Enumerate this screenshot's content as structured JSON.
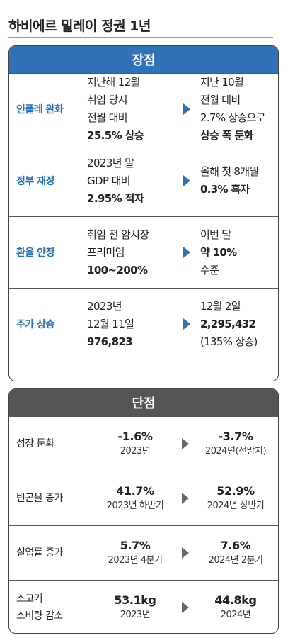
{
  "title": "하비에르 밀레이 정권 1년",
  "colors": {
    "pros_accent": "#2f72b8",
    "cons_accent": "#555555"
  },
  "pros": {
    "header": "장점",
    "rows": [
      {
        "label": "인플레 완화",
        "before": [
          "지난해 12월",
          "취임 당시",
          "전월 대비",
          "25.5% 상승"
        ],
        "after": [
          "지난 10월",
          "전월 대비",
          "2.7% 상승으로",
          "상승 폭 둔화"
        ]
      },
      {
        "label": "정부 재정",
        "before": [
          "2023년 말",
          "GDP 대비",
          "2.95% 적자"
        ],
        "after": [
          "올해 첫 8개월",
          "0.3% 흑자"
        ]
      },
      {
        "label": "환율 안정",
        "before": [
          "취임 전 암시장",
          "프리미엄",
          "100~200%"
        ],
        "after": [
          "이번 달",
          "약 10%",
          "수준"
        ]
      },
      {
        "label": "주가 상승",
        "before": [
          "2023년",
          "12월 11일",
          "976,823"
        ],
        "after": [
          "12월 2일",
          "2,295,432",
          "(135% 상승)"
        ]
      }
    ]
  },
  "cons": {
    "header": "단점",
    "rows": [
      {
        "label": [
          "성장 둔화"
        ],
        "before": {
          "value": "-1.6%",
          "period": "2023년"
        },
        "after": {
          "value": "-3.7%",
          "period": "2024년(전망치)"
        }
      },
      {
        "label": [
          "빈곤율 증가"
        ],
        "before": {
          "value": "41.7%",
          "period": "2023년 하반기"
        },
        "after": {
          "value": "52.9%",
          "period": "2024년 상반기"
        }
      },
      {
        "label": [
          "실업률 증가"
        ],
        "before": {
          "value": "5.7%",
          "period": "2023년 4분기"
        },
        "after": {
          "value": "7.6%",
          "period": "2024년 2분기"
        }
      },
      {
        "label": [
          "소고기",
          "소비량 감소"
        ],
        "before": {
          "value": "53.1kg",
          "period": "2023년"
        },
        "after": {
          "value": "44.8kg",
          "period": "2024년"
        }
      }
    ]
  }
}
